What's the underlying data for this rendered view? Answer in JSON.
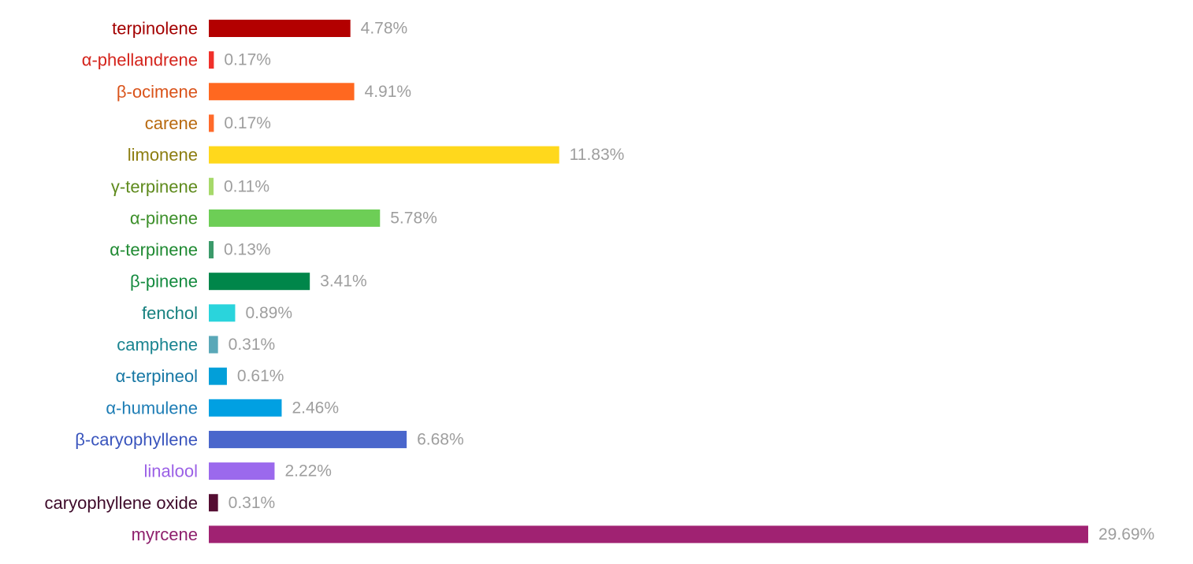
{
  "chart_data": {
    "type": "bar",
    "orientation": "horizontal",
    "title": "",
    "xlabel": "",
    "ylabel": "",
    "unit": "%",
    "xlim": [
      0,
      29.69
    ],
    "grid": false,
    "legend": "none",
    "value_label_color": "#9e9e9e",
    "bars": [
      {
        "label": "terpinolene",
        "value": 4.78,
        "value_text": "4.78%",
        "color": "#b30000",
        "label_color": "#a30000"
      },
      {
        "label": "α-phellandrene",
        "value": 0.17,
        "value_text": "0.17%",
        "color": "#f0302a",
        "label_color": "#d4231b"
      },
      {
        "label": "β-ocimene",
        "value": 4.91,
        "value_text": "4.91%",
        "color": "#ff6820",
        "label_color": "#d9531a"
      },
      {
        "label": "carene",
        "value": 0.17,
        "value_text": "0.17%",
        "color": "#ff6a2a",
        "label_color": "#b8690f"
      },
      {
        "label": "limonene",
        "value": 11.83,
        "value_text": "11.83%",
        "color": "#ffd81c",
        "label_color": "#8c7d10"
      },
      {
        "label": "γ-terpinene",
        "value": 0.11,
        "value_text": "0.11%",
        "color": "#a6d96a",
        "label_color": "#5e8a1c"
      },
      {
        "label": "α-pinene",
        "value": 5.78,
        "value_text": "5.78%",
        "color": "#6dce56",
        "label_color": "#3c8f2a"
      },
      {
        "label": "α-terpinene",
        "value": 0.13,
        "value_text": "0.13%",
        "color": "#3b9a6a",
        "label_color": "#1f8a32"
      },
      {
        "label": "β-pinene",
        "value": 3.41,
        "value_text": "3.41%",
        "color": "#00864a",
        "label_color": "#138a3e"
      },
      {
        "label": "fenchol",
        "value": 0.89,
        "value_text": "0.89%",
        "color": "#2ad4dc",
        "label_color": "#16807f"
      },
      {
        "label": "camphene",
        "value": 0.31,
        "value_text": "0.31%",
        "color": "#5aa8b8",
        "label_color": "#1a8490"
      },
      {
        "label": "α-terpineol",
        "value": 0.61,
        "value_text": "0.61%",
        "color": "#029fd9",
        "label_color": "#1677a4"
      },
      {
        "label": "α-humulene",
        "value": 2.46,
        "value_text": "2.46%",
        "color": "#01a0e2",
        "label_color": "#1d7db5"
      },
      {
        "label": "β-caryophyllene",
        "value": 6.68,
        "value_text": "6.68%",
        "color": "#4a67cc",
        "label_color": "#3a55bd"
      },
      {
        "label": "linalool",
        "value": 2.22,
        "value_text": "2.22%",
        "color": "#9b69ed",
        "label_color": "#9b60e6"
      },
      {
        "label": "caryophyllene oxide",
        "value": 0.31,
        "value_text": "0.31%",
        "color": "#540d32",
        "label_color": "#3e0a2a"
      },
      {
        "label": "myrcene",
        "value": 29.69,
        "value_text": "29.69%",
        "color": "#a02272",
        "label_color": "#8e1f6c"
      }
    ]
  }
}
